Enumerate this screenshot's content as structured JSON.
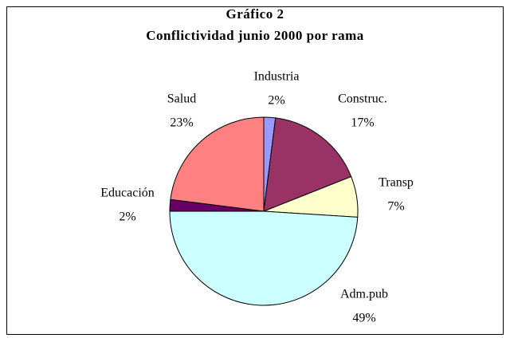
{
  "chart_data": {
    "type": "pie",
    "title": "Gráfico 2",
    "subtitle": "Conflictividad junio 2000 por rama",
    "categories": [
      "Industria",
      "Construc.",
      "Transp",
      "Adm.pub",
      "Educación",
      "Salud"
    ],
    "values": [
      2,
      17,
      7,
      49,
      2,
      23
    ],
    "value_labels": [
      "2%",
      "17%",
      "7%",
      "49%",
      "2%",
      "23%"
    ],
    "colors": [
      "#9999ff",
      "#993366",
      "#ffffcc",
      "#ccffff",
      "#660066",
      "#ff8080"
    ]
  }
}
